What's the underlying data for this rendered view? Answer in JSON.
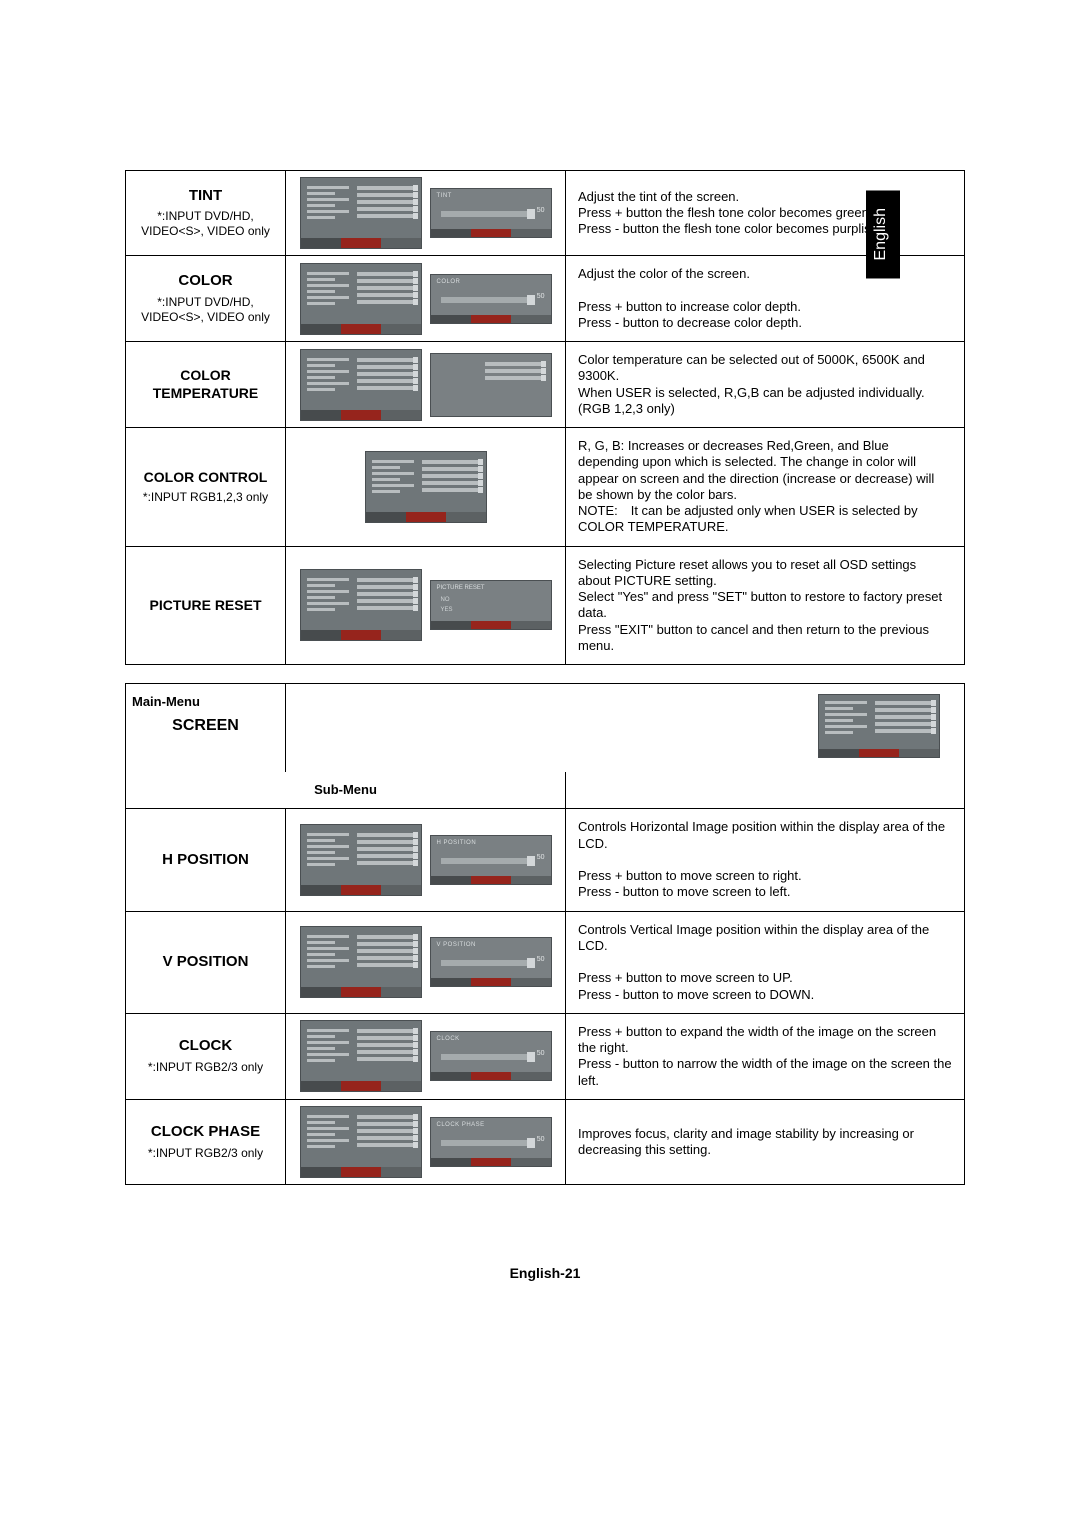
{
  "lang_tab": "English",
  "page_number": "English-21",
  "section1": {
    "rows": [
      {
        "title": "TINT",
        "subtitle": "*:INPUT DVD/HD, VIDEO<S>, VIDEO only",
        "slider_label": "TINT",
        "slider_value": "50",
        "desc": "Adjust the tint of the screen.\nPress + button the flesh tone color becomes greenish.\nPress - button the flesh tone color becomes purplish."
      },
      {
        "title": "COLOR",
        "subtitle": "*:INPUT DVD/HD, VIDEO<S>, VIDEO only",
        "slider_label": "COLOR",
        "slider_value": "50",
        "desc": "Adjust the color of the screen.\n\nPress + button to increase color depth.\nPress - button to decrease color depth."
      },
      {
        "title": "COLOR TEMPERATURE",
        "subtitle": "",
        "slider_label": "",
        "slider_value": "",
        "desc": "Color temperature can be selected out of 5000K, 6500K and 9300K.\nWhen USER is selected, R,G,B can be adjusted individually.(RGB 1,2,3 only)"
      },
      {
        "title": "COLOR CONTROL",
        "subtitle": "*:INPUT RGB1,2,3 only",
        "slider_label": "",
        "slider_value": "",
        "desc": "R, G, B: Increases or decreases Red,Green, and Blue depending upon which is selected. The change in color will appear on screen and the direction (increase or decrease) will be shown by the color bars.\nNOTE: It can be adjusted only when USER is selected by COLOR TEMPERATURE."
      },
      {
        "title": "PICTURE RESET",
        "subtitle": "",
        "slider_label": "PICTURE RESET",
        "slider_value": "",
        "desc": "Selecting Picture reset allows you to reset all OSD settings about PICTURE setting.\nSelect \"Yes\" and press \"SET\" button to restore to factory preset data.\nPress \"EXIT\" button to cancel and then return to the previous menu."
      }
    ]
  },
  "section2": {
    "mainmenu": "Main-Menu",
    "screen": "SCREEN",
    "submenu": "Sub-Menu",
    "rows": [
      {
        "title": "H POSITION",
        "subtitle": "",
        "slider_label": "H POSITION",
        "slider_value": "50",
        "desc": "Controls Horizontal Image position within the display area of the LCD.\n\nPress + button to move screen to right.\nPress - button to move screen to left."
      },
      {
        "title": "V POSITION",
        "subtitle": "",
        "slider_label": "V POSITION",
        "slider_value": "50",
        "desc": "Controls Vertical Image position within the display area of the LCD.\n\nPress + button to move screen to UP.\nPress - button to move screen to DOWN."
      },
      {
        "title": "CLOCK",
        "subtitle": "*:INPUT RGB2/3 only",
        "slider_label": "CLOCK",
        "slider_value": "50",
        "desc": "Press + button to expand the width of the image on the screen the right.\nPress - button to narrow the width of the image on the screen the left."
      },
      {
        "title": "CLOCK PHASE",
        "subtitle": "*:INPUT RGB2/3 only",
        "slider_label": "CLOCK PHASE",
        "slider_value": "50",
        "desc": "Improves focus, clarity and image stability by increasing or decreasing this setting."
      }
    ]
  },
  "reset": {
    "opt1": "NO",
    "opt2": "YES"
  }
}
